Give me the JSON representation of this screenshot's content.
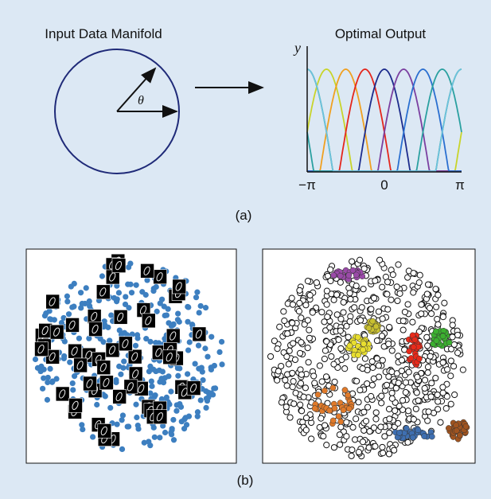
{
  "panel_a": {
    "left_title": "Input Data Manifold",
    "right_title": "Optimal Output",
    "y_label": "y",
    "angle_label": "θ",
    "x_ticks": [
      "−π",
      "0",
      "π"
    ],
    "caption": "(a)"
  },
  "panel_b": {
    "caption": "(b)"
  }
}
